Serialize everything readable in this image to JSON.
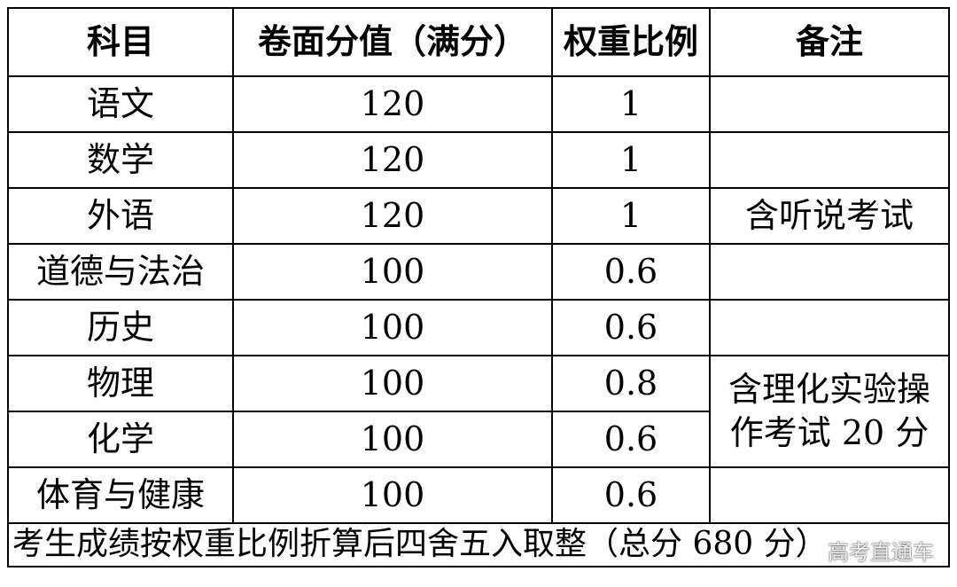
{
  "table": {
    "header": [
      "科目",
      "卷面分值（满分）",
      "权重比例",
      "备注"
    ],
    "rows": [
      {
        "subject": "语文",
        "score": 120,
        "weight": 1
      },
      {
        "subject": "数学",
        "score": 120,
        "weight": 1
      },
      {
        "subject": "外语",
        "score": 120,
        "weight": 1,
        "note": "含听说考试"
      },
      {
        "subject": "道德与法治",
        "score": 100,
        "weight": 0.6
      },
      {
        "subject": "历史",
        "score": 100,
        "weight": 0.6
      },
      {
        "subject": "物理",
        "score": 100,
        "weight": 0.8,
        "note": "含理化实验操作考试 20 分"
      },
      {
        "subject": "化学",
        "score": 100,
        "weight": 0.6
      },
      {
        "subject": "体育与健康",
        "score": 100,
        "weight": 0.6
      }
    ],
    "footer": "考生成绩按权重比例折算后四舍五入取整（总分 680 分）"
  },
  "watermark": "高考直通车"
}
